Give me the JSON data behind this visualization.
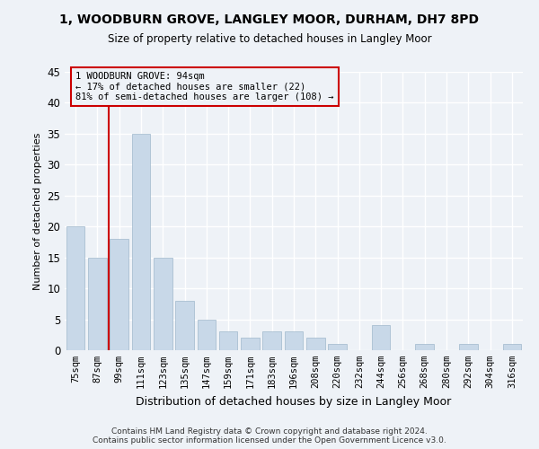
{
  "title": "1, WOODBURN GROVE, LANGLEY MOOR, DURHAM, DH7 8PD",
  "subtitle": "Size of property relative to detached houses in Langley Moor",
  "xlabel": "Distribution of detached houses by size in Langley Moor",
  "ylabel": "Number of detached properties",
  "categories": [
    "75sqm",
    "87sqm",
    "99sqm",
    "111sqm",
    "123sqm",
    "135sqm",
    "147sqm",
    "159sqm",
    "171sqm",
    "183sqm",
    "196sqm",
    "208sqm",
    "220sqm",
    "232sqm",
    "244sqm",
    "256sqm",
    "268sqm",
    "280sqm",
    "292sqm",
    "304sqm",
    "316sqm"
  ],
  "values": [
    20,
    15,
    18,
    35,
    15,
    8,
    5,
    3,
    2,
    3,
    3,
    2,
    1,
    0,
    4,
    0,
    1,
    0,
    1,
    0,
    1
  ],
  "bar_color": "#c8d8e8",
  "bar_edgecolor": "#a0b8cc",
  "ylim": [
    0,
    45
  ],
  "yticks": [
    0,
    5,
    10,
    15,
    20,
    25,
    30,
    35,
    40,
    45
  ],
  "vline_x": 1.5,
  "vline_color": "#cc0000",
  "annotation_line1": "1 WOODBURN GROVE: 94sqm",
  "annotation_line2": "← 17% of detached houses are smaller (22)",
  "annotation_line3": "81% of semi-detached houses are larger (108) →",
  "annotation_box_color": "#cc0000",
  "footer_text": "Contains HM Land Registry data © Crown copyright and database right 2024.\nContains public sector information licensed under the Open Government Licence v3.0.",
  "background_color": "#eef2f7",
  "grid_color": "#ffffff"
}
